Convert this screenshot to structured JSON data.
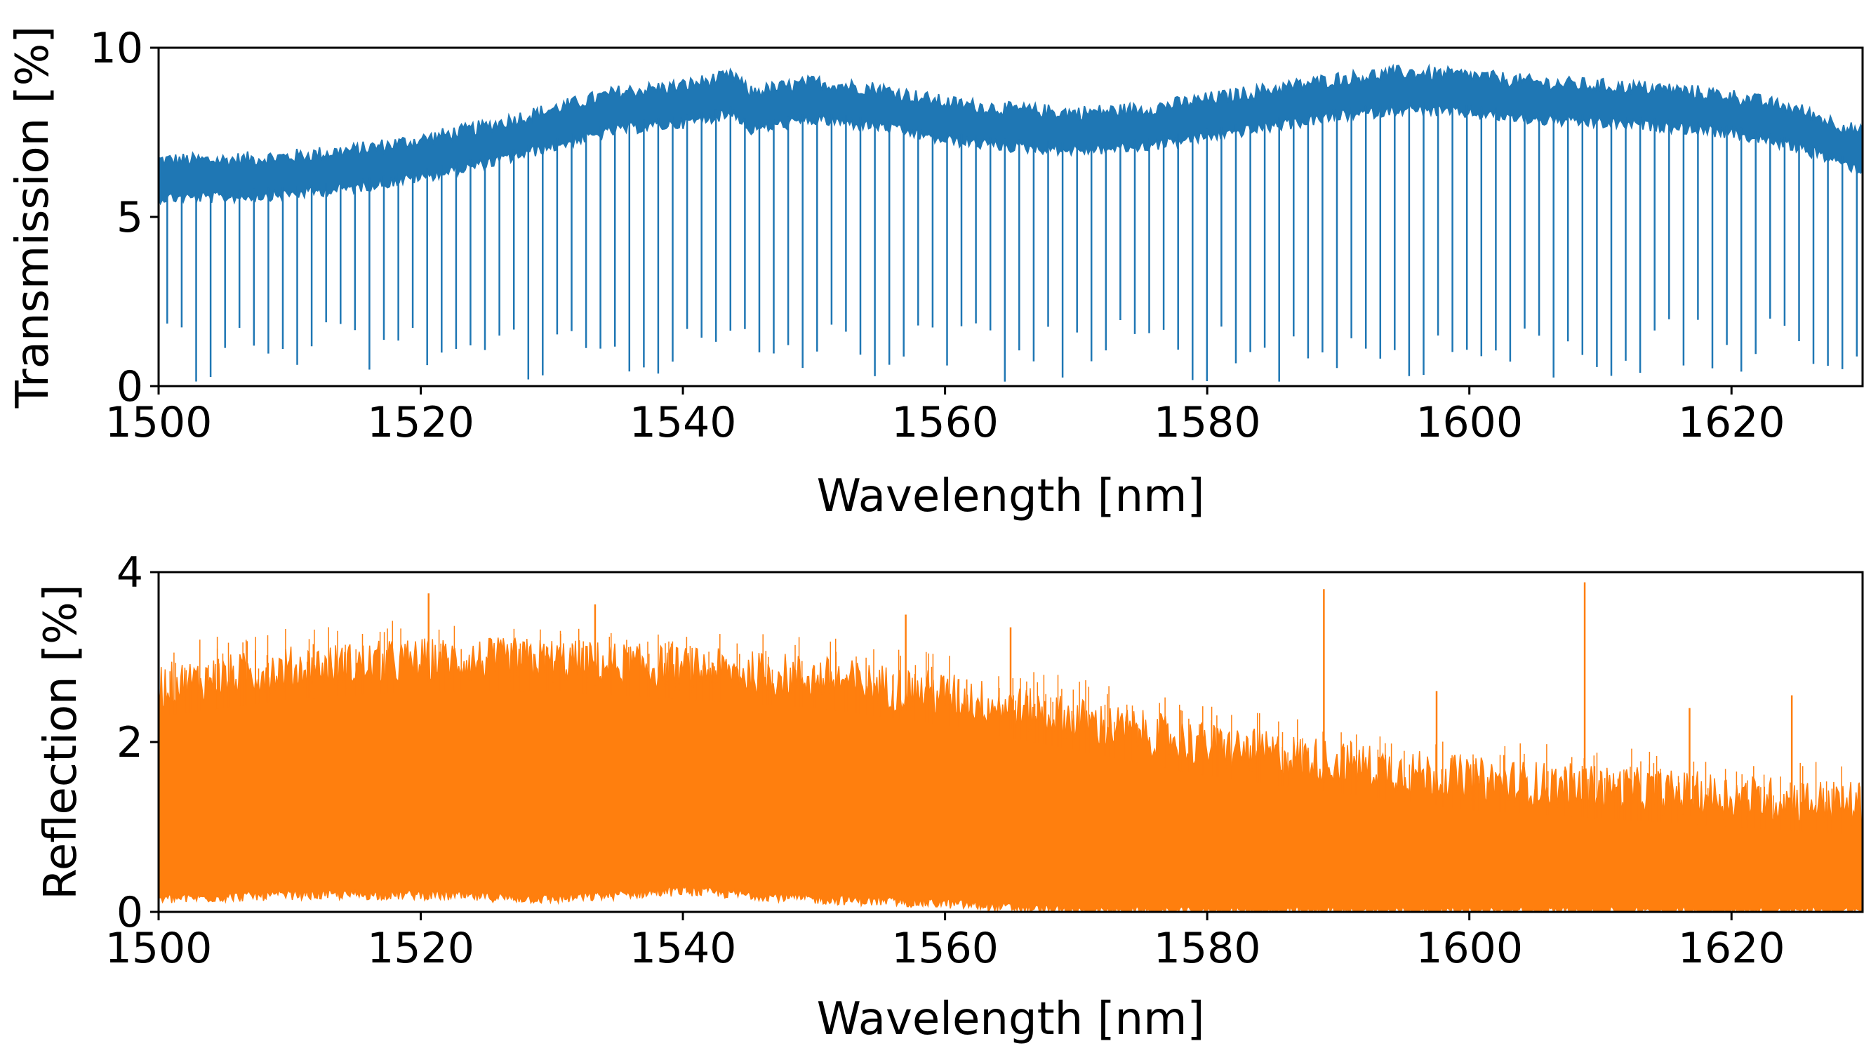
{
  "chart_data": [
    {
      "type": "line",
      "id": "transmission",
      "xlabel": "Wavelength [nm]",
      "ylabel": "Transmission [%]",
      "xlim": [
        1500,
        1630
      ],
      "ylim": [
        0,
        10
      ],
      "xticks": [
        1500,
        1520,
        1540,
        1560,
        1580,
        1600,
        1620
      ],
      "yticks": [
        0,
        5,
        10
      ],
      "color": "#1f77b4",
      "grid": false,
      "series": [
        {
          "name": "transmission",
          "envelope_x": [
            1500,
            1505,
            1510,
            1515,
            1520,
            1525,
            1530,
            1535,
            1540,
            1544,
            1545,
            1550,
            1555,
            1560,
            1565,
            1570,
            1575,
            1580,
            1585,
            1590,
            1595,
            1600,
            1605,
            1610,
            1615,
            1620,
            1625,
            1630
          ],
          "envelope_y": [
            6.1,
            6.1,
            6.2,
            6.4,
            6.7,
            7.1,
            7.6,
            8.1,
            8.3,
            8.6,
            8.1,
            8.4,
            8.2,
            7.8,
            7.6,
            7.5,
            7.6,
            7.9,
            8.2,
            8.5,
            8.7,
            8.6,
            8.4,
            8.3,
            8.2,
            8.0,
            7.6,
            6.9
          ],
          "dip_count": 118,
          "dip_minimum_range": [
            0.1,
            2.0
          ]
        }
      ]
    },
    {
      "type": "line",
      "id": "reflection",
      "xlabel": "Wavelength [nm]",
      "ylabel": "Reflection [%]",
      "xlim": [
        1500,
        1630
      ],
      "ylim": [
        0,
        4
      ],
      "xticks": [
        1500,
        1520,
        1540,
        1560,
        1580,
        1600,
        1620
      ],
      "yticks": [
        0,
        2,
        4
      ],
      "color": "#ff7f0e",
      "grid": false,
      "series": [
        {
          "name": "reflection",
          "upper_x": [
            1500,
            1510,
            1520,
            1530,
            1540,
            1550,
            1560,
            1570,
            1580,
            1590,
            1600,
            1610,
            1620,
            1630
          ],
          "upper_y": [
            2.6,
            2.8,
            2.9,
            2.9,
            2.8,
            2.7,
            2.5,
            2.2,
            1.9,
            1.7,
            1.5,
            1.4,
            1.3,
            1.2
          ],
          "lower_x": [
            1500,
            1510,
            1520,
            1530,
            1540,
            1550,
            1560,
            1565,
            1570,
            1630
          ],
          "lower_y": [
            0.15,
            0.2,
            0.2,
            0.15,
            0.25,
            0.15,
            0.1,
            0.05,
            0.0,
            0.0
          ],
          "spikes": [
            {
              "x": 1520.6,
              "y": 3.75
            },
            {
              "x": 1533.3,
              "y": 3.62
            },
            {
              "x": 1557.0,
              "y": 3.5
            },
            {
              "x": 1565.0,
              "y": 3.35
            },
            {
              "x": 1588.9,
              "y": 3.8
            },
            {
              "x": 1597.5,
              "y": 2.6
            },
            {
              "x": 1608.8,
              "y": 3.88
            },
            {
              "x": 1616.8,
              "y": 2.4
            },
            {
              "x": 1624.6,
              "y": 2.55
            }
          ]
        }
      ]
    }
  ]
}
